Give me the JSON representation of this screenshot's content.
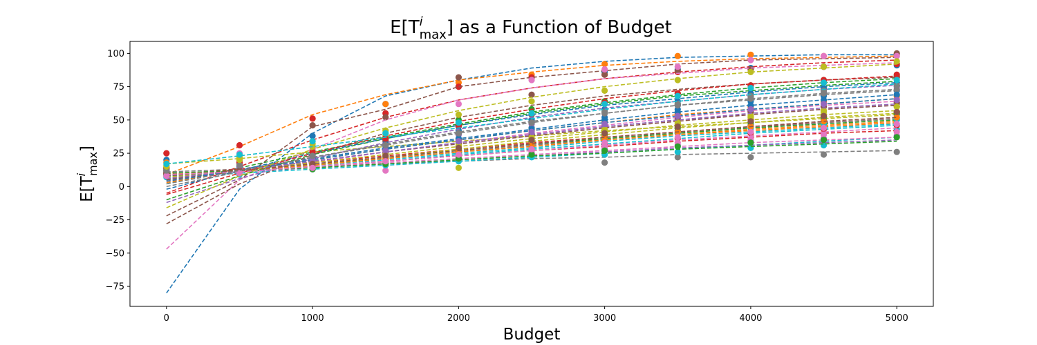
{
  "chart_data": {
    "type": "scatter",
    "title_parts": {
      "pre": "E[T",
      "sup": "i",
      "sub": "max",
      "post": "] as a Function of Budget"
    },
    "xlabel": "Budget",
    "ylabel_parts": {
      "pre": "E[T",
      "sup": "i",
      "sub": "max",
      "post": "]"
    },
    "x": [
      0,
      500,
      1000,
      1500,
      2000,
      2500,
      3000,
      3500,
      4000,
      4500,
      5000
    ],
    "xlim": [
      -250,
      5250
    ],
    "ylim": [
      -90,
      109
    ],
    "xticks": [
      0,
      1000,
      2000,
      3000,
      4000,
      5000
    ],
    "yticks": [
      -75,
      -50,
      -25,
      0,
      25,
      50,
      75,
      100
    ],
    "grid": false,
    "legend": "none",
    "colors": [
      "#1f77b4",
      "#ff7f0e",
      "#2ca02c",
      "#d62728",
      "#9467bd",
      "#8c564b",
      "#e377c2",
      "#7f7f7f",
      "#bcbd22",
      "#17becf"
    ],
    "series": [
      {
        "points": [
          20,
          18,
          38,
          62,
          75,
          82,
          86,
          88,
          89,
          90,
          91
        ],
        "fit": [
          -80,
          -2,
          40,
          68,
          80,
          89,
          94,
          97,
          98,
          99,
          99
        ]
      },
      {
        "points": [
          18,
          22,
          51,
          62,
          78,
          84,
          92,
          98,
          99,
          98,
          99
        ],
        "fit": [
          9,
          30,
          54,
          69,
          80,
          86,
          91,
          94,
          96,
          97,
          98
        ]
      },
      {
        "points": [
          12,
          13,
          22,
          35,
          50,
          58,
          64,
          70,
          76,
          80,
          83
        ],
        "fit": [
          2,
          14,
          26,
          37,
          47,
          56,
          63,
          69,
          74,
          78,
          81
        ]
      },
      {
        "points": [
          25,
          31,
          51,
          55,
          75,
          82,
          84,
          86,
          88,
          90,
          92
        ],
        "fit": [
          -5,
          15,
          35,
          52,
          65,
          74,
          81,
          86,
          90,
          93,
          95
        ]
      },
      {
        "points": [
          10,
          12,
          18,
          25,
          33,
          40,
          46,
          52,
          56,
          60,
          62
        ],
        "fit": [
          6,
          12,
          19,
          26,
          33,
          39,
          45,
          50,
          54,
          58,
          61
        ]
      },
      {
        "points": [
          14,
          20,
          46,
          52,
          82,
          69,
          84,
          87,
          88,
          90,
          100
        ],
        "fit": [
          -22,
          5,
          45,
          58,
          75,
          82,
          87,
          92,
          95,
          96,
          97
        ]
      },
      {
        "points": [
          12,
          25,
          28,
          12,
          62,
          80,
          88,
          90,
          95,
          98,
          98
        ],
        "fit": [
          -47,
          5,
          28,
          50,
          65,
          74,
          81,
          85,
          89,
          91,
          93
        ]
      },
      {
        "points": [
          9,
          10,
          14,
          18,
          22,
          25,
          18,
          22,
          22,
          24,
          26
        ],
        "fit": [
          11,
          13,
          15,
          17,
          19,
          21,
          22,
          24,
          25,
          26,
          27
        ]
      },
      {
        "points": [
          16,
          22,
          32,
          38,
          14,
          44,
          48,
          50,
          52,
          54,
          56
        ],
        "fit": [
          17,
          21,
          26,
          30,
          34,
          38,
          42,
          45,
          48,
          51,
          54
        ]
      },
      {
        "points": [
          7,
          9,
          13,
          16,
          19,
          22,
          24,
          26,
          29,
          31,
          43
        ],
        "fit": [
          7,
          10,
          13,
          16,
          19,
          22,
          25,
          28,
          31,
          34,
          37
        ]
      },
      {
        "points": [
          11,
          14,
          20,
          28,
          36,
          44,
          52,
          58,
          64,
          68,
          72
        ],
        "fit": [
          5,
          13,
          21,
          29,
          36,
          43,
          50,
          56,
          61,
          65,
          69
        ]
      },
      {
        "points": [
          9,
          11,
          16,
          21,
          27,
          32,
          37,
          42,
          46,
          49,
          52
        ],
        "fit": [
          8,
          12,
          16,
          21,
          26,
          31,
          35,
          39,
          43,
          46,
          49
        ]
      },
      {
        "points": [
          13,
          15,
          22,
          30,
          40,
          48,
          56,
          62,
          68,
          72,
          76
        ],
        "fit": [
          -10,
          8,
          24,
          36,
          46,
          55,
          62,
          68,
          72,
          76,
          79
        ]
      },
      {
        "points": [
          10,
          13,
          18,
          24,
          30,
          36,
          41,
          46,
          50,
          53,
          56
        ],
        "fit": [
          9,
          13,
          18,
          23,
          28,
          33,
          37,
          41,
          45,
          48,
          51
        ]
      },
      {
        "points": [
          8,
          10,
          13,
          17,
          21,
          25,
          28,
          31,
          34,
          36,
          38
        ],
        "fit": [
          8,
          11,
          14,
          17,
          20,
          23,
          26,
          29,
          31,
          33,
          35
        ]
      },
      {
        "points": [
          12,
          16,
          24,
          34,
          45,
          54,
          62,
          68,
          74,
          78,
          82
        ],
        "fit": [
          -28,
          2,
          24,
          40,
          52,
          61,
          68,
          73,
          77,
          80,
          82
        ]
      },
      {
        "points": [
          11,
          13,
          19,
          26,
          34,
          41,
          48,
          54,
          59,
          63,
          66
        ],
        "fit": [
          4,
          11,
          18,
          26,
          33,
          40,
          46,
          52,
          57,
          61,
          64
        ]
      },
      {
        "points": [
          10,
          12,
          16,
          22,
          28,
          33,
          38,
          42,
          46,
          50,
          54
        ],
        "fit": [
          6,
          11,
          16,
          21,
          26,
          31,
          36,
          40,
          44,
          48,
          51
        ]
      },
      {
        "points": [
          9,
          12,
          17,
          23,
          30,
          36,
          42,
          47,
          52,
          56,
          60
        ],
        "fit": [
          7,
          11,
          16,
          22,
          28,
          34,
          39,
          44,
          48,
          52,
          55
        ]
      },
      {
        "points": [
          8,
          11,
          15,
          20,
          25,
          30,
          35,
          40,
          44,
          47,
          50
        ],
        "fit": [
          8,
          11,
          15,
          19,
          24,
          28,
          32,
          36,
          40,
          43,
          46
        ]
      },
      {
        "points": [
          14,
          17,
          24,
          32,
          42,
          50,
          58,
          64,
          70,
          74,
          78
        ],
        "fit": [
          -2,
          12,
          25,
          36,
          46,
          54,
          61,
          66,
          71,
          75,
          78
        ]
      },
      {
        "points": [
          12,
          14,
          20,
          27,
          35,
          42,
          49,
          55,
          60,
          64,
          68
        ],
        "fit": [
          3,
          12,
          20,
          28,
          35,
          42,
          48,
          54,
          58,
          62,
          66
        ]
      },
      {
        "points": [
          10,
          12,
          17,
          22,
          28,
          34,
          39,
          44,
          48,
          52,
          55
        ],
        "fit": [
          9,
          12,
          17,
          22,
          27,
          32,
          36,
          40,
          44,
          47,
          50
        ]
      },
      {
        "points": [
          9,
          11,
          15,
          19,
          24,
          28,
          32,
          36,
          40,
          43,
          46
        ],
        "fit": [
          9,
          12,
          15,
          19,
          23,
          27,
          30,
          34,
          37,
          40,
          42
        ]
      },
      {
        "points": [
          11,
          15,
          22,
          30,
          39,
          47,
          55,
          61,
          67,
          71,
          75
        ],
        "fit": [
          -12,
          6,
          21,
          33,
          43,
          52,
          59,
          64,
          69,
          73,
          76
        ]
      },
      {
        "points": [
          10,
          13,
          18,
          25,
          32,
          39,
          45,
          51,
          56,
          60,
          63
        ],
        "fit": [
          5,
          12,
          19,
          26,
          32,
          38,
          44,
          49,
          54,
          58,
          61
        ]
      },
      {
        "points": [
          8,
          10,
          14,
          18,
          22,
          26,
          30,
          33,
          36,
          39,
          41
        ],
        "fit": [
          10,
          12,
          15,
          18,
          21,
          24,
          27,
          30,
          33,
          35,
          37
        ]
      },
      {
        "points": [
          13,
          16,
          23,
          31,
          40,
          48,
          55,
          61,
          66,
          70,
          73
        ],
        "fit": [
          0,
          11,
          22,
          32,
          41,
          49,
          55,
          61,
          65,
          69,
          72
        ]
      },
      {
        "points": [
          11,
          13,
          18,
          24,
          31,
          37,
          43,
          48,
          53,
          57,
          60
        ],
        "fit": [
          7,
          12,
          18,
          24,
          30,
          36,
          41,
          46,
          50,
          54,
          57
        ]
      },
      {
        "points": [
          9,
          11,
          15,
          20,
          26,
          31,
          36,
          40,
          44,
          48,
          51
        ],
        "fit": [
          8,
          12,
          16,
          20,
          25,
          29,
          34,
          38,
          41,
          44,
          47
        ]
      },
      {
        "points": [
          12,
          15,
          21,
          28,
          36,
          43,
          50,
          56,
          61,
          65,
          69
        ],
        "fit": [
          4,
          12,
          20,
          28,
          35,
          42,
          48,
          53,
          58,
          62,
          66
        ]
      },
      {
        "points": [
          10,
          12,
          16,
          21,
          27,
          32,
          37,
          41,
          45,
          49,
          52
        ],
        "fit": [
          9,
          12,
          16,
          21,
          26,
          30,
          35,
          39,
          42,
          45,
          48
        ]
      },
      {
        "points": [
          9,
          10,
          13,
          17,
          21,
          24,
          27,
          30,
          33,
          35,
          37
        ],
        "fit": [
          10,
          12,
          14,
          17,
          20,
          23,
          25,
          28,
          30,
          32,
          34
        ]
      },
      {
        "points": [
          14,
          18,
          26,
          36,
          46,
          55,
          63,
          70,
          76,
          80,
          84
        ],
        "fit": [
          -6,
          10,
          25,
          38,
          49,
          58,
          66,
          72,
          77,
          80,
          83
        ]
      },
      {
        "points": [
          11,
          14,
          20,
          27,
          34,
          41,
          47,
          53,
          58,
          62,
          65
        ],
        "fit": [
          6,
          12,
          19,
          26,
          33,
          39,
          45,
          50,
          55,
          59,
          62
        ]
      },
      {
        "points": [
          10,
          12,
          17,
          23,
          29,
          35,
          40,
          45,
          49,
          53,
          56
        ],
        "fit": [
          8,
          12,
          17,
          22,
          27,
          32,
          37,
          41,
          45,
          49,
          52
        ]
      },
      {
        "points": [
          8,
          10,
          14,
          19,
          24,
          28,
          33,
          37,
          41,
          44,
          47
        ],
        "fit": [
          9,
          11,
          15,
          19,
          23,
          27,
          31,
          35,
          38,
          41,
          44
        ]
      },
      {
        "points": [
          12,
          16,
          23,
          31,
          40,
          48,
          56,
          62,
          68,
          72,
          76
        ],
        "fit": [
          2,
          12,
          22,
          31,
          40,
          48,
          55,
          61,
          66,
          70,
          73
        ]
      },
      {
        "points": [
          15,
          20,
          30,
          42,
          54,
          64,
          72,
          80,
          86,
          90,
          94
        ],
        "fit": [
          -16,
          8,
          28,
          44,
          57,
          67,
          75,
          81,
          86,
          89,
          92
        ]
      },
      {
        "points": [
          17,
          24,
          34,
          40,
          48,
          55,
          62,
          68,
          74,
          78,
          80
        ],
        "fit": [
          17,
          23,
          30,
          37,
          44,
          51,
          58,
          64,
          69,
          73,
          77
        ]
      }
    ]
  }
}
